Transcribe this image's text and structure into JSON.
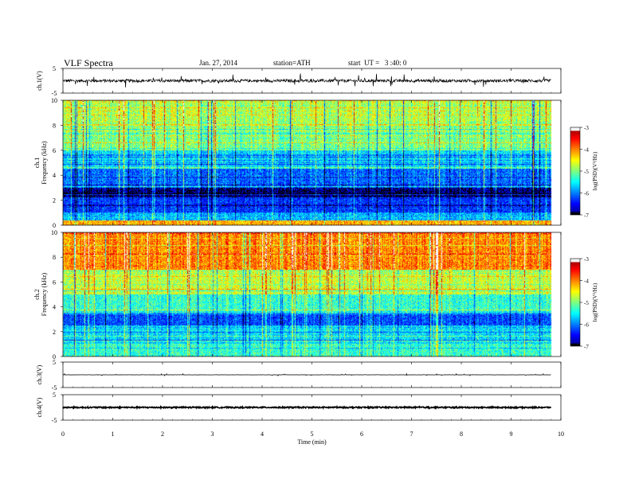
{
  "header": {
    "title": "VLF Spectra",
    "date": "Jan. 27, 2014",
    "station": "station=ATH",
    "start": "start  UT =   3 :40: 0"
  },
  "chart_data": [
    {
      "type": "line",
      "panel": "ch1-waveform",
      "ylabel": "ch.1(V)",
      "yticks": [
        "5",
        "-5"
      ],
      "ylim": [
        -5,
        5
      ],
      "xlim": [
        0,
        10
      ],
      "description_values": {
        "baseline": 0,
        "noise_amplitude": 0.6,
        "spike_amplitude": 2.5
      }
    },
    {
      "type": "heatmap",
      "panel": "ch1-spectrogram",
      "ylabel_top": "ch.1",
      "ylabel": "Frequency (kHz)",
      "yticks": [
        "0",
        "2",
        "4",
        "6",
        "8",
        "10"
      ],
      "ylim": [
        0,
        10
      ],
      "xlim": [
        0,
        10
      ],
      "data_end_min": 9.8,
      "colorbar": {
        "label": "log(PSD)(V²/Hz)",
        "ticks": [
          "-3",
          "-4",
          "-5",
          "-6",
          "-7"
        ],
        "range": [
          -7,
          -3
        ]
      },
      "bands": [
        {
          "f_lo": 0,
          "f_hi": 0.4,
          "psd": -4.2
        },
        {
          "f_lo": 0.4,
          "f_hi": 1.0,
          "psd": -5.8
        },
        {
          "f_lo": 1.0,
          "f_hi": 2.2,
          "psd": -6.3
        },
        {
          "f_lo": 2.2,
          "f_hi": 3.0,
          "psd": -6.9
        },
        {
          "f_lo": 3.0,
          "f_hi": 4.5,
          "psd": -6.1
        },
        {
          "f_lo": 4.5,
          "f_hi": 6.0,
          "psd": -5.6
        },
        {
          "f_lo": 6.0,
          "f_hi": 8.0,
          "psd": -5.0
        },
        {
          "f_lo": 8.0,
          "f_hi": 10.0,
          "psd": -4.8
        }
      ]
    },
    {
      "type": "heatmap",
      "panel": "ch2-spectrogram",
      "ylabel_top": "ch.2",
      "ylabel": "Frequency (kHz)",
      "yticks": [
        "0",
        "2",
        "4",
        "6",
        "8",
        "10"
      ],
      "ylim": [
        0,
        10
      ],
      "xlim": [
        0,
        10
      ],
      "data_end_min": 9.8,
      "colorbar": {
        "label": "log(PSD)(V²/Hz)",
        "ticks": [
          "-3",
          "-4",
          "-5",
          "-6",
          "-7"
        ],
        "range": [
          -7,
          -3
        ]
      },
      "bands": [
        {
          "f_lo": 0,
          "f_hi": 1.0,
          "psd": -5.3
        },
        {
          "f_lo": 1.0,
          "f_hi": 2.5,
          "psd": -5.6
        },
        {
          "f_lo": 2.5,
          "f_hi": 3.5,
          "psd": -6.2
        },
        {
          "f_lo": 3.5,
          "f_hi": 5.0,
          "psd": -5.3
        },
        {
          "f_lo": 5.0,
          "f_hi": 7.0,
          "psd": -4.7
        },
        {
          "f_lo": 7.0,
          "f_hi": 10.0,
          "psd": -4.0
        }
      ]
    },
    {
      "type": "line",
      "panel": "ch3-waveform",
      "ylabel": "ch.3(V)",
      "yticks": [
        "5",
        "-5"
      ],
      "ylim": [
        -5,
        5
      ],
      "xlim": [
        0,
        10
      ],
      "description_values": {
        "baseline": 0,
        "noise_amplitude": 0.05,
        "spike_amplitude": 0.4
      }
    },
    {
      "type": "line",
      "panel": "ch4-waveform",
      "ylabel": "ch.4(V)",
      "yticks": [
        "5",
        "-5"
      ],
      "ylim": [
        -5,
        5
      ],
      "xlim": [
        0,
        10
      ],
      "xlabel": "Time  (min)",
      "xticks": [
        "0",
        "1",
        "2",
        "3",
        "4",
        "5",
        "6",
        "7",
        "8",
        "9",
        "10"
      ],
      "description_values": {
        "baseline": 0,
        "noise_amplitude": 0.25,
        "spike_amplitude": 0.25
      }
    }
  ],
  "colors": {
    "background": "#ffffff",
    "axis": "#000000",
    "trace": "#000000"
  }
}
